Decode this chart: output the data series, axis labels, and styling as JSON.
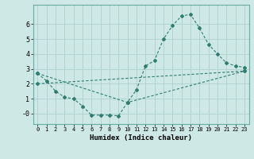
{
  "title": "",
  "xlabel": "Humidex (Indice chaleur)",
  "ylabel": "",
  "background_color": "#cde8e5",
  "grid_color": "#afd0cc",
  "line_color": "#2e7d6e",
  "x_ticks": [
    0,
    1,
    2,
    3,
    4,
    5,
    6,
    7,
    8,
    9,
    10,
    11,
    12,
    13,
    14,
    15,
    16,
    17,
    18,
    19,
    20,
    21,
    22,
    23
  ],
  "y_ticks": [
    0,
    1,
    2,
    3,
    4,
    5,
    6
  ],
  "y_tick_labels": [
    "-0",
    "1",
    "2",
    "3",
    "4",
    "5",
    "6"
  ],
  "ylim": [
    -0.7,
    7.3
  ],
  "xlim": [
    -0.5,
    23.5
  ],
  "series": [
    {
      "x": [
        0,
        1,
        2,
        3,
        4,
        5,
        6,
        7,
        8,
        9,
        10,
        11,
        12,
        13,
        14,
        15,
        16,
        17,
        18,
        19,
        20,
        21,
        22,
        23
      ],
      "y": [
        2.7,
        2.2,
        1.5,
        1.1,
        1.0,
        0.5,
        -0.1,
        -0.1,
        -0.1,
        -0.15,
        0.75,
        1.6,
        3.2,
        3.55,
        5.0,
        5.9,
        6.55,
        6.65,
        5.75,
        4.65,
        4.0,
        3.4,
        3.2,
        3.1
      ]
    },
    {
      "x": [
        0,
        10,
        23
      ],
      "y": [
        2.7,
        0.75,
        2.85
      ]
    },
    {
      "x": [
        0,
        23
      ],
      "y": [
        2.0,
        2.85
      ]
    }
  ]
}
